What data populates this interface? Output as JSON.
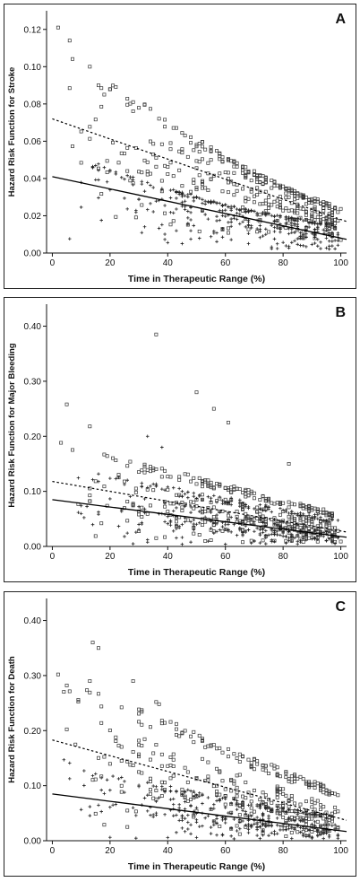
{
  "chart_data": [
    {
      "type": "scatter",
      "panel_letter": "A",
      "xlabel": "Time in Therapeutic Range (%)",
      "ylabel": "Hazard Risk Function for Stroke",
      "xlim": [
        -2,
        102
      ],
      "ylim": [
        0,
        0.13
      ],
      "xticks": [
        0,
        20,
        40,
        60,
        80,
        100
      ],
      "yticks": [
        0.0,
        0.02,
        0.04,
        0.06,
        0.08,
        0.1,
        0.12
      ],
      "ytick_labels": [
        "0.00",
        "0.02",
        "0.04",
        "0.06",
        "0.08",
        "0.10",
        "0.12"
      ],
      "grid": false,
      "series": [
        {
          "marker": "square",
          "trend_style": "dotted",
          "trend": {
            "x": [
              0,
              100
            ],
            "y": [
              0.072,
              0.018
            ]
          },
          "band": {
            "x": [
              0,
              20,
              40,
              60,
              80,
              100
            ],
            "upper": [
              0.115,
              0.092,
              0.072,
              0.052,
              0.036,
              0.024
            ],
            "lower": [
              0.02,
              0.015,
              0.012,
              0.01,
              0.008,
              0.006
            ]
          },
          "outliers": [
            {
              "x": 2,
              "y": 0.121
            },
            {
              "x": 6,
              "y": 0.114
            },
            {
              "x": 13,
              "y": 0.1
            },
            {
              "x": 16,
              "y": 0.09
            },
            {
              "x": 18,
              "y": 0.085
            },
            {
              "x": 28,
              "y": 0.081
            }
          ]
        },
        {
          "marker": "plus",
          "trend_style": "solid",
          "trend": {
            "x": [
              0,
              100
            ],
            "y": [
              0.041,
              0.008
            ]
          },
          "band": {
            "x": [
              0,
              20,
              40,
              60,
              80,
              100
            ],
            "upper": [
              0.06,
              0.045,
              0.035,
              0.026,
              0.02,
              0.015
            ],
            "lower": [
              0.003,
              0.002,
              0.002,
              0.002,
              0.002,
              0.002
            ]
          },
          "outliers": []
        }
      ]
    },
    {
      "type": "scatter",
      "panel_letter": "B",
      "xlabel": "Time in Therapeutic Range (%)",
      "ylabel": "Hazard Risk Function for Major Bleeding",
      "xlim": [
        -2,
        102
      ],
      "ylim": [
        0,
        0.44
      ],
      "xticks": [
        0,
        20,
        40,
        60,
        80,
        100
      ],
      "yticks": [
        0.0,
        0.1,
        0.2,
        0.3,
        0.4
      ],
      "ytick_labels": [
        "0.00",
        "0.10",
        "0.20",
        "0.30",
        "0.40"
      ],
      "grid": false,
      "series": [
        {
          "marker": "square",
          "trend_style": "dotted",
          "trend": {
            "x": [
              0,
              100
            ],
            "y": [
              0.118,
              0.028
            ]
          },
          "band": {
            "x": [
              0,
              20,
              40,
              60,
              80,
              100
            ],
            "upper": [
              0.2,
              0.165,
              0.14,
              0.115,
              0.085,
              0.06
            ],
            "lower": [
              0.01,
              0.01,
              0.01,
              0.008,
              0.006,
              0.005
            ]
          },
          "outliers": [
            {
              "x": 36,
              "y": 0.385
            },
            {
              "x": 50,
              "y": 0.28
            },
            {
              "x": 5,
              "y": 0.258
            },
            {
              "x": 56,
              "y": 0.25
            },
            {
              "x": 61,
              "y": 0.225
            },
            {
              "x": 13,
              "y": 0.218
            },
            {
              "x": 82,
              "y": 0.15
            }
          ]
        },
        {
          "marker": "plus",
          "trend_style": "solid",
          "trend": {
            "x": [
              0,
              100
            ],
            "y": [
              0.085,
              0.018
            ]
          },
          "band": {
            "x": [
              0,
              20,
              40,
              60,
              80,
              100
            ],
            "upper": [
              0.15,
              0.13,
              0.11,
              0.09,
              0.07,
              0.05
            ],
            "lower": [
              0.005,
              0.004,
              0.003,
              0.003,
              0.003,
              0.003
            ]
          },
          "outliers": [
            {
              "x": 33,
              "y": 0.2
            },
            {
              "x": 38,
              "y": 0.18
            }
          ]
        }
      ]
    },
    {
      "type": "scatter",
      "panel_letter": "C",
      "xlabel": "Time in Therapeutic Range (%)",
      "ylabel": "Hazard Risk Function for Death",
      "xlim": [
        -2,
        102
      ],
      "ylim": [
        0,
        0.44
      ],
      "xticks": [
        0,
        20,
        40,
        60,
        80,
        100
      ],
      "yticks": [
        0.0,
        0.1,
        0.2,
        0.3,
        0.4
      ],
      "ytick_labels": [
        "0.00",
        "0.10",
        "0.20",
        "0.30",
        "0.40"
      ],
      "grid": false,
      "series": [
        {
          "marker": "square",
          "trend_style": "dotted",
          "trend": {
            "x": [
              0,
              100
            ],
            "y": [
              0.183,
              0.04
            ]
          },
          "band": {
            "x": [
              0,
              20,
              40,
              60,
              80,
              100
            ],
            "upper": [
              0.3,
              0.26,
              0.22,
              0.17,
              0.13,
              0.09
            ],
            "lower": [
              0.02,
              0.015,
              0.012,
              0.01,
              0.008,
              0.006
            ]
          },
          "outliers": [
            {
              "x": 14,
              "y": 0.36
            },
            {
              "x": 16,
              "y": 0.35
            },
            {
              "x": 2,
              "y": 0.302
            },
            {
              "x": 13,
              "y": 0.29
            },
            {
              "x": 28,
              "y": 0.29
            },
            {
              "x": 5,
              "y": 0.282
            },
            {
              "x": 36,
              "y": 0.252
            },
            {
              "x": 37,
              "y": 0.248
            }
          ]
        },
        {
          "marker": "plus",
          "trend_style": "solid",
          "trend": {
            "x": [
              0,
              100
            ],
            "y": [
              0.085,
              0.018
            ]
          },
          "band": {
            "x": [
              0,
              20,
              40,
              60,
              80,
              100
            ],
            "upper": [
              0.16,
              0.12,
              0.1,
              0.08,
              0.06,
              0.045
            ],
            "lower": [
              0.005,
              0.004,
              0.003,
              0.003,
              0.003,
              0.003
            ]
          },
          "outliers": []
        }
      ]
    }
  ]
}
